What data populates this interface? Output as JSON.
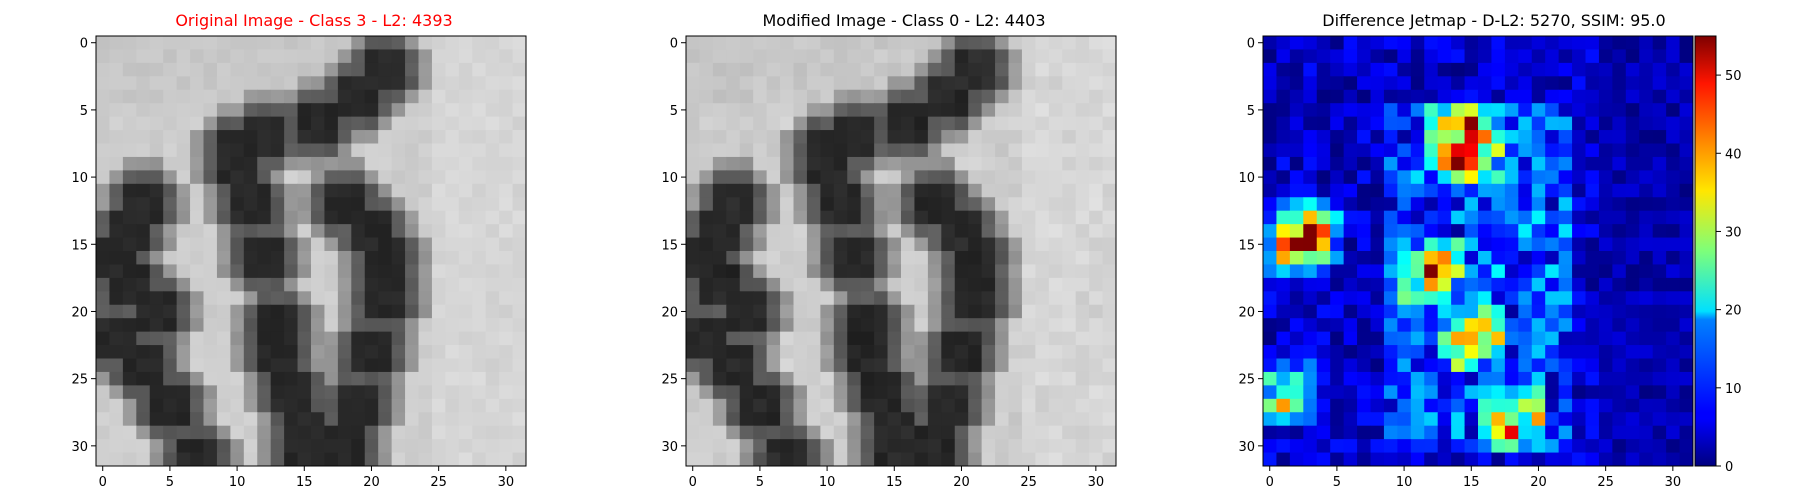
{
  "chart_data": [
    {
      "type": "heatmap",
      "title": "Original Image - Class 3 - L2: 4393",
      "title_color": "#ff0000",
      "colormap": "gray",
      "xticks": [
        0,
        5,
        10,
        15,
        20,
        25,
        30
      ],
      "yticks": [
        0,
        5,
        10,
        15,
        20,
        25,
        30
      ],
      "xlim": [
        -0.5,
        31.5
      ],
      "ylim": [
        31.5,
        -0.5
      ],
      "grid": false
    },
    {
      "type": "heatmap",
      "title": "Modified Image - Class 0 - L2: 4403",
      "title_color": "#000000",
      "colormap": "gray",
      "xticks": [
        0,
        5,
        10,
        15,
        20,
        25,
        30
      ],
      "yticks": [
        0,
        5,
        10,
        15,
        20,
        25,
        30
      ],
      "xlim": [
        -0.5,
        31.5
      ],
      "ylim": [
        31.5,
        -0.5
      ],
      "grid": false
    },
    {
      "type": "heatmap",
      "title": "Difference Jetmap - D-L2: 5270, SSIM: 95.0",
      "title_color": "#000000",
      "colormap": "jet",
      "xticks": [
        0,
        5,
        10,
        15,
        20,
        25,
        30
      ],
      "yticks": [
        0,
        5,
        10,
        15,
        20,
        25,
        30
      ],
      "xlim": [
        -0.5,
        31.5
      ],
      "ylim": [
        31.5,
        -0.5
      ],
      "colorbar": {
        "range": [
          0,
          55
        ],
        "ticks": [
          0,
          10,
          20,
          30,
          40,
          50
        ]
      },
      "grid": false
    }
  ]
}
